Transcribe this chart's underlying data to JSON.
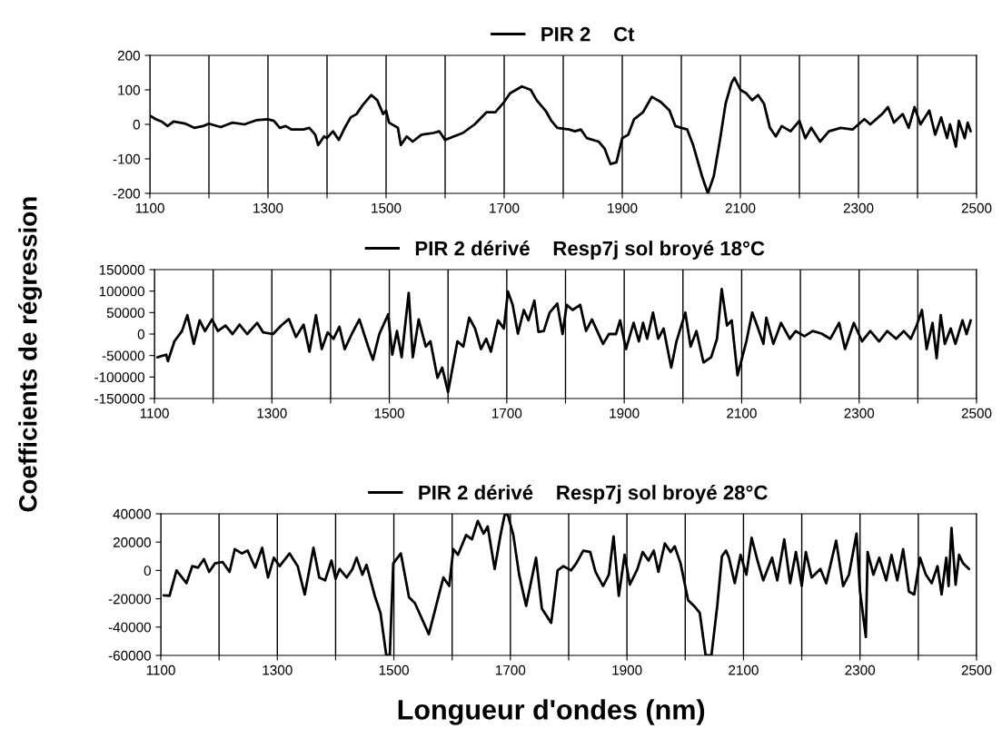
{
  "chart_data": [
    {
      "type": "line",
      "legend": "top",
      "grid": "x",
      "marker": "none",
      "line_style": "solid",
      "xlim": [
        1100,
        2500
      ],
      "ylim": [
        -200,
        200
      ],
      "xticks": [
        1100,
        {
          "value": 1200,
          "label": null
        },
        1300,
        {
          "value": 1400,
          "label": null
        },
        1500,
        {
          "value": 1600,
          "label": null
        },
        1700,
        {
          "value": 1800,
          "label": null
        },
        1900,
        {
          "value": 2000,
          "label": null
        },
        2100,
        {
          "value": 2200,
          "label": null
        },
        2300,
        {
          "value": 2400,
          "label": null
        },
        2500
      ],
      "yticks": [
        -200,
        -100,
        0,
        100,
        200
      ],
      "series": [
        {
          "name": "PIR 2    Ct",
          "color": "#000000",
          "x": [
            1100,
            1110,
            1120,
            1130,
            1140,
            1160,
            1175,
            1190,
            1200,
            1220,
            1240,
            1260,
            1280,
            1300,
            1310,
            1320,
            1330,
            1340,
            1360,
            1370,
            1380,
            1385,
            1395,
            1400,
            1410,
            1420,
            1430,
            1440,
            1450,
            1460,
            1475,
            1485,
            1495,
            1500,
            1505,
            1520,
            1525,
            1535,
            1545,
            1560,
            1580,
            1590,
            1600,
            1615,
            1630,
            1650,
            1670,
            1685,
            1700,
            1710,
            1730,
            1745,
            1755,
            1770,
            1780,
            1790,
            1810,
            1820,
            1830,
            1840,
            1860,
            1870,
            1880,
            1890,
            1900,
            1910,
            1920,
            1935,
            1950,
            1965,
            1980,
            1990,
            2000,
            2010,
            2020,
            2035,
            2045,
            2055,
            2065,
            2075,
            2085,
            2090,
            2100,
            2110,
            2120,
            2130,
            2140,
            2150,
            2160,
            2170,
            2185,
            2200,
            2210,
            2220,
            2235,
            2250,
            2270,
            2290,
            2310,
            2320,
            2340,
            2350,
            2360,
            2375,
            2385,
            2395,
            2405,
            2420,
            2430,
            2440,
            2450,
            2455,
            2465,
            2470,
            2480,
            2485,
            2490
          ],
          "values": [
            25,
            15,
            8,
            -5,
            8,
            2,
            -10,
            -5,
            2,
            -8,
            5,
            0,
            12,
            15,
            10,
            -10,
            -5,
            -15,
            -15,
            -10,
            -30,
            -60,
            -35,
            -40,
            -20,
            -45,
            -10,
            20,
            30,
            55,
            85,
            70,
            30,
            40,
            5,
            -10,
            -60,
            -35,
            -50,
            -30,
            -25,
            -20,
            -45,
            -35,
            -25,
            0,
            35,
            35,
            65,
            90,
            110,
            100,
            70,
            40,
            10,
            -10,
            -15,
            -20,
            -15,
            -40,
            -50,
            -70,
            -115,
            -110,
            -40,
            -30,
            15,
            35,
            80,
            65,
            40,
            -5,
            -10,
            -15,
            -60,
            -150,
            -200,
            -150,
            -50,
            60,
            120,
            135,
            100,
            90,
            70,
            85,
            60,
            -10,
            -35,
            -5,
            -20,
            10,
            -40,
            -10,
            -50,
            -20,
            -10,
            -15,
            15,
            0,
            30,
            50,
            5,
            30,
            -10,
            50,
            0,
            40,
            -30,
            20,
            -40,
            0,
            -65,
            10,
            -40,
            5,
            -20
          ]
        }
      ]
    },
    {
      "type": "line",
      "legend": "top",
      "grid": "x",
      "marker": "none",
      "line_style": "solid",
      "xlim": [
        1100,
        2500
      ],
      "ylim": [
        -150000,
        150000
      ],
      "xticks": [
        1100,
        {
          "value": 1200,
          "label": null
        },
        1300,
        {
          "value": 1400,
          "label": null
        },
        1500,
        {
          "value": 1600,
          "label": null
        },
        1700,
        {
          "value": 1800,
          "label": null
        },
        1900,
        {
          "value": 2000,
          "label": null
        },
        2100,
        {
          "value": 2200,
          "label": null
        },
        2300,
        {
          "value": 2400,
          "label": null
        },
        2500
      ],
      "yticks": [
        -150000,
        -100000,
        -50000,
        0,
        50000,
        100000,
        150000
      ],
      "ylabel": "Coefficients de régression",
      "series": [
        {
          "name": "PIR 2 dérivé    Resp7j sol broyé 18°C",
          "color": "#000000",
          "x": [
            1105,
            1120,
            1123,
            1134,
            1147,
            1156,
            1167,
            1177,
            1186,
            1198,
            1208,
            1221,
            1233,
            1245,
            1258,
            1275,
            1285,
            1302,
            1316,
            1329,
            1341,
            1354,
            1364,
            1375,
            1385,
            1395,
            1405,
            1415,
            1424,
            1436,
            1449,
            1464,
            1472,
            1483,
            1498,
            1505,
            1513,
            1521,
            1533,
            1540,
            1550,
            1562,
            1570,
            1582,
            1590,
            1600,
            1616,
            1626,
            1636,
            1646,
            1656,
            1665,
            1673,
            1685,
            1695,
            1702,
            1710,
            1719,
            1729,
            1737,
            1747,
            1754,
            1763,
            1773,
            1786,
            1795,
            1802,
            1812,
            1825,
            1835,
            1845,
            1854,
            1864,
            1874,
            1886,
            1893,
            1903,
            1916,
            1925,
            1932,
            1939,
            1949,
            1958,
            1967,
            1980,
            1989,
            2004,
            2013,
            2023,
            2035,
            2048,
            2058,
            2066,
            2075,
            2083,
            2093,
            2108,
            2118,
            2128,
            2137,
            2142,
            2154,
            2167,
            2182,
            2192,
            2207,
            2221,
            2236,
            2251,
            2266,
            2276,
            2291,
            2305,
            2319,
            2334,
            2348,
            2363,
            2376,
            2388,
            2398,
            2407,
            2415,
            2425,
            2432,
            2439,
            2446,
            2456,
            2464,
            2476,
            2483,
            2490
          ],
          "values": [
            -54000,
            -48000,
            -63000,
            -17000,
            7000,
            44000,
            -23000,
            32000,
            7000,
            34000,
            7000,
            20000,
            0,
            22000,
            0,
            26000,
            4000,
            0,
            20000,
            35000,
            -7000,
            22000,
            -41000,
            44000,
            -35000,
            4000,
            -11000,
            17000,
            -35000,
            0,
            34000,
            -29000,
            -60000,
            0,
            46000,
            -48000,
            7000,
            -54000,
            96000,
            -54000,
            34000,
            -29000,
            -17000,
            -102000,
            -78000,
            -135000,
            -17000,
            -29000,
            38000,
            13000,
            -35000,
            -11000,
            -41000,
            32000,
            13000,
            99000,
            68000,
            1000,
            56000,
            32000,
            78000,
            5000,
            7000,
            50000,
            71000,
            0,
            68000,
            56000,
            68000,
            7000,
            34000,
            7000,
            -23000,
            0,
            0,
            32000,
            -35000,
            26000,
            -17000,
            26000,
            -11000,
            50000,
            -11000,
            13000,
            -78000,
            -17000,
            50000,
            -29000,
            7000,
            -66000,
            -54000,
            -11000,
            105000,
            20000,
            32000,
            -96000,
            -17000,
            50000,
            13000,
            -23000,
            38000,
            -23000,
            26000,
            -11000,
            7000,
            -5000,
            7000,
            1000,
            -11000,
            26000,
            -35000,
            26000,
            -17000,
            7000,
            -17000,
            7000,
            -11000,
            7000,
            -11000,
            20000,
            56000,
            -35000,
            26000,
            -56000,
            44000,
            -23000,
            13000,
            -23000,
            32000,
            0,
            32000
          ]
        }
      ]
    },
    {
      "type": "line",
      "legend": "top",
      "grid": "x",
      "marker": "none",
      "line_style": "solid",
      "xlim": [
        1100,
        2500
      ],
      "ylim": [
        -60000,
        40000
      ],
      "xticks": [
        1100,
        {
          "value": 1200,
          "label": null
        },
        1300,
        {
          "value": 1400,
          "label": null
        },
        1500,
        {
          "value": 1600,
          "label": null
        },
        1700,
        {
          "value": 1800,
          "label": null
        },
        1900,
        {
          "value": 2000,
          "label": null
        },
        2100,
        {
          "value": 2200,
          "label": null
        },
        2300,
        {
          "value": 2400,
          "label": null
        },
        2500
      ],
      "yticks": [
        -60000,
        -40000,
        -20000,
        0,
        20000,
        40000
      ],
      "xlabel": "Longueur d'ondes (nm)",
      "series": [
        {
          "name": "PIR 2 dérivé    Resp7j sol broyé 28°C",
          "color": "#000000",
          "x": [
            1105,
            1115,
            1127,
            1144,
            1154,
            1164,
            1174,
            1183,
            1193,
            1206,
            1218,
            1227,
            1239,
            1249,
            1262,
            1274,
            1284,
            1294,
            1304,
            1321,
            1335,
            1347,
            1362,
            1372,
            1382,
            1393,
            1400,
            1407,
            1419,
            1429,
            1436,
            1446,
            1453,
            1468,
            1477,
            1487,
            1493,
            1499,
            1512,
            1526,
            1536,
            1560,
            1575,
            1585,
            1595,
            1602,
            1610,
            1624,
            1634,
            1644,
            1654,
            1661,
            1673,
            1683,
            1690,
            1695,
            1705,
            1715,
            1727,
            1744,
            1754,
            1770,
            1781,
            1791,
            1804,
            1813,
            1825,
            1837,
            1846,
            1859,
            1869,
            1877,
            1886,
            1896,
            1905,
            1918,
            1927,
            1937,
            1946,
            1954,
            1965,
            1975,
            1982,
            1992,
            2005,
            2015,
            2025,
            2035,
            2045,
            2055,
            2063,
            2070,
            2075,
            2085,
            2095,
            2105,
            2114,
            2124,
            2134,
            2149,
            2158,
            2170,
            2180,
            2190,
            2200,
            2207,
            2217,
            2232,
            2242,
            2259,
            2271,
            2281,
            2294,
            2300,
            2310,
            2313,
            2323,
            2333,
            2345,
            2354,
            2364,
            2374,
            2384,
            2393,
            2403,
            2413,
            2423,
            2433,
            2440,
            2448,
            2452,
            2457,
            2464,
            2470,
            2477,
            2482,
            2487
          ],
          "values": [
            -17600,
            -18000,
            0,
            -9000,
            3000,
            2000,
            8000,
            -1000,
            5000,
            6000,
            -1000,
            15000,
            12000,
            14000,
            2000,
            16000,
            -5000,
            9000,
            3000,
            12000,
            3000,
            -17000,
            16000,
            -5000,
            -7000,
            7000,
            -6000,
            1000,
            -5000,
            1000,
            9000,
            -3000,
            4000,
            -19000,
            -30000,
            -60000,
            -60000,
            5000,
            12000,
            -19000,
            -23000,
            -45000,
            -21000,
            -5000,
            -11000,
            15000,
            11000,
            25000,
            22000,
            35000,
            26000,
            31000,
            1000,
            25000,
            39000,
            40000,
            25000,
            -3000,
            -25000,
            9000,
            -27000,
            -37000,
            0,
            3000,
            0,
            5000,
            14000,
            13000,
            -1000,
            -11000,
            -3000,
            24000,
            -18000,
            11000,
            -10000,
            1000,
            13000,
            7000,
            14000,
            -1000,
            19000,
            13000,
            17000,
            5000,
            -21000,
            -25000,
            -30000,
            -60000,
            -60000,
            -25000,
            10000,
            14000,
            9000,
            -9000,
            11000,
            -3000,
            23000,
            7000,
            -7000,
            9000,
            -7000,
            22000,
            -9000,
            13000,
            -11000,
            13000,
            -5000,
            1000,
            -9000,
            21000,
            -11000,
            -3000,
            26000,
            -15000,
            -47000,
            13000,
            -3000,
            9000,
            -7000,
            11000,
            -7000,
            15000,
            -15000,
            -17000,
            9000,
            -3000,
            -9000,
            3000,
            -17000,
            9000,
            -11000,
            30000,
            -10000,
            11000,
            5000,
            3000,
            1000
          ]
        }
      ]
    }
  ]
}
